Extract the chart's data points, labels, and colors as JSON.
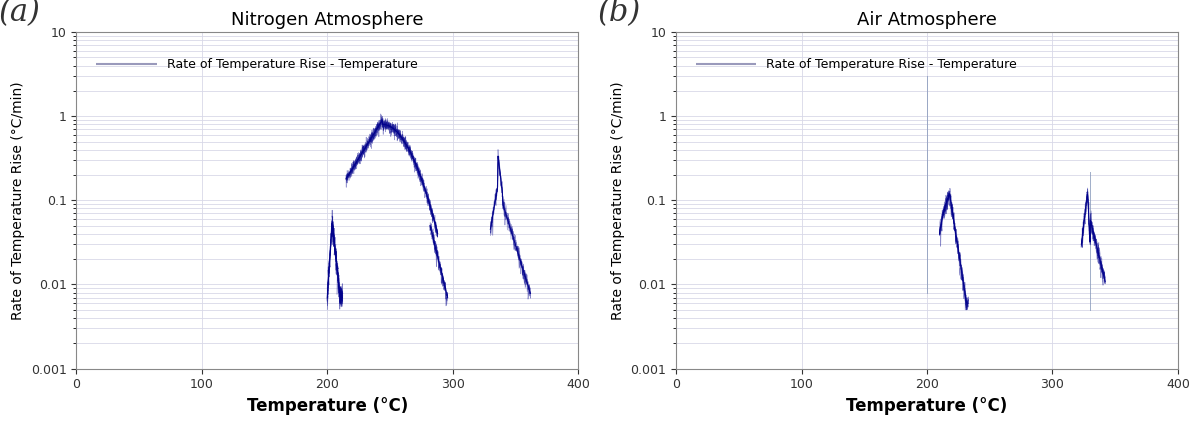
{
  "title_a": "Nitrogen Atmosphere",
  "title_b": "Air Atmosphere",
  "xlabel": "Temperature (°C)",
  "ylabel": "Rate of Temperature Rise (°C/min)",
  "legend_label": "Rate of Temperature Rise - Temperature",
  "label_a": "(a)",
  "label_b": "(b)",
  "xlim": [
    0,
    400
  ],
  "ylim_log": [
    0.001,
    10
  ],
  "xticks": [
    0,
    100,
    200,
    300,
    400
  ],
  "line_color": "#00008B",
  "legend_line_color": "#9999bb",
  "grid_color": "#d8d8e8",
  "background_color": "#ffffff",
  "title_fontsize": 13,
  "xlabel_fontsize": 12,
  "ylabel_fontsize": 10,
  "tick_fontsize": 9,
  "legend_fontsize": 9,
  "panel_label_fontsize": 22
}
